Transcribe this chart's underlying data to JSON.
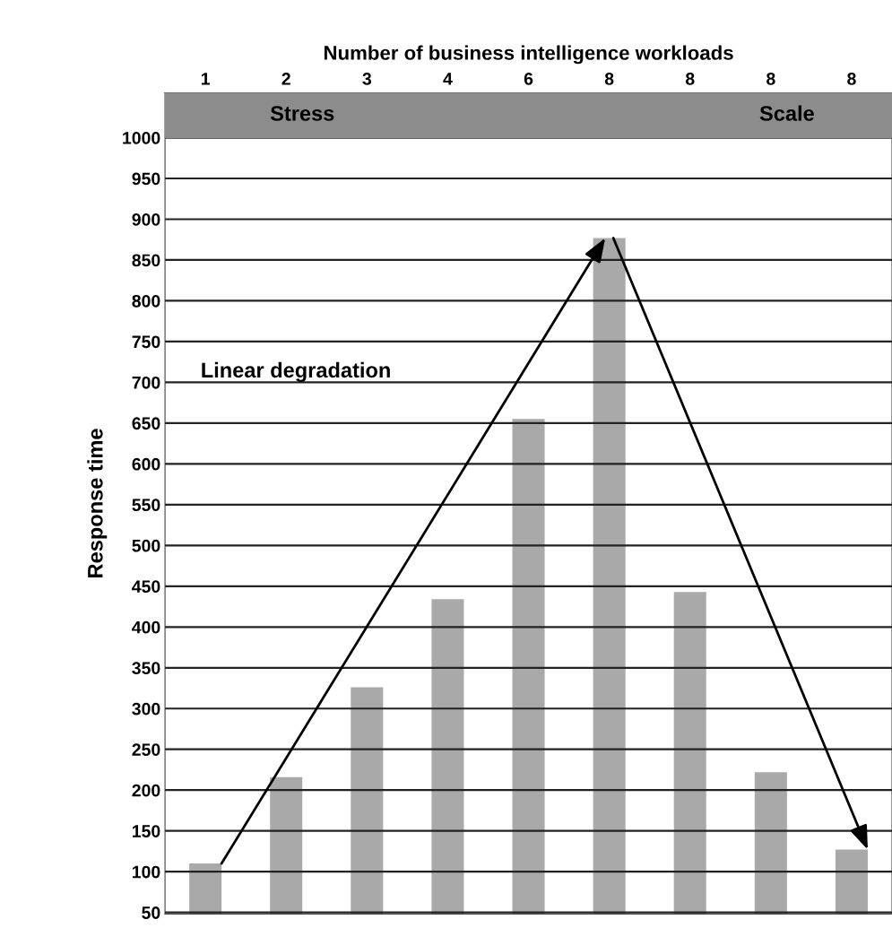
{
  "chart_data": {
    "type": "bar",
    "xlabel": "Number of business intelligence workloads",
    "ylabel": "Response time",
    "categories": [
      "1",
      "2",
      "3",
      "4",
      "6",
      "8",
      "8",
      "8",
      "8"
    ],
    "series": [
      {
        "color": "#a9a9a9",
        "values": [
          110,
          216,
          326,
          434,
          655,
          877,
          443,
          222,
          127
        ]
      }
    ],
    "ylim": [
      48,
      1055
    ],
    "yticks": [
      50,
      100,
      150,
      200,
      250,
      300,
      350,
      400,
      450,
      500,
      550,
      600,
      650,
      700,
      750,
      800,
      850,
      900,
      950,
      1000
    ],
    "grid": "y",
    "bands": [
      {
        "axis": "y",
        "from": 1000,
        "to": 1055,
        "color": "#8c8c8c"
      }
    ],
    "annotations": [
      "Stress",
      "Scale",
      "Linear degradation"
    ]
  }
}
